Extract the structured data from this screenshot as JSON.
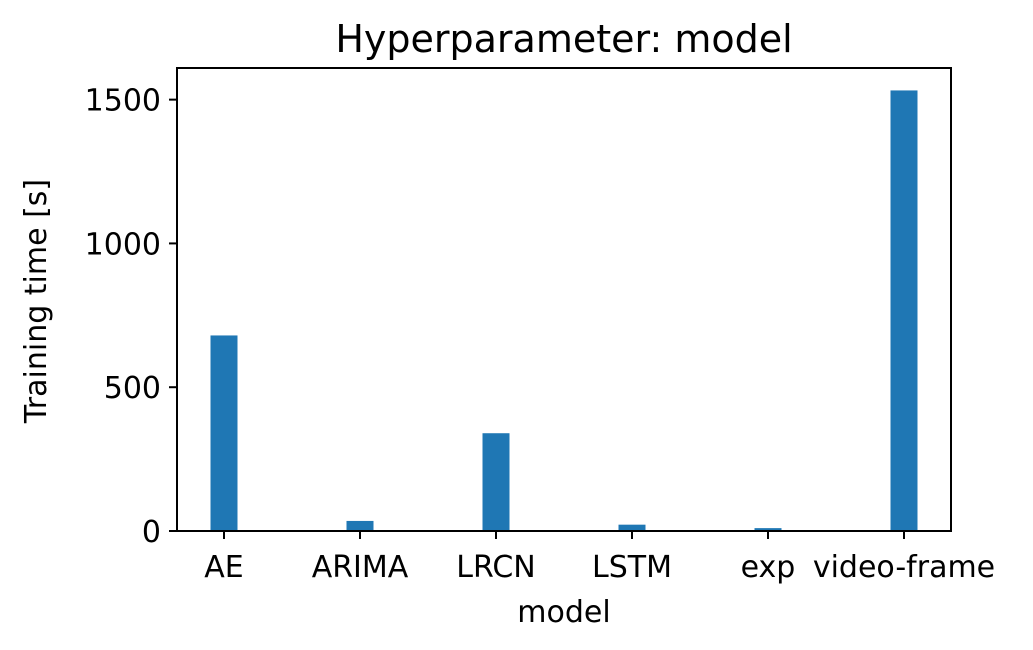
{
  "chart_data": {
    "type": "bar",
    "title": "Hyperparameter: model",
    "xlabel": "model",
    "ylabel": "Training time [s]",
    "categories": [
      "AE",
      "ARIMA",
      "LRCN",
      "LSTM",
      "exp",
      "video-frame"
    ],
    "values": [
      680,
      35,
      340,
      22,
      10,
      1532
    ],
    "ylim": [
      0,
      1610
    ],
    "yticks": [
      0,
      500,
      1000,
      1500
    ],
    "grid": false,
    "bar_color": "#1f77b4"
  }
}
